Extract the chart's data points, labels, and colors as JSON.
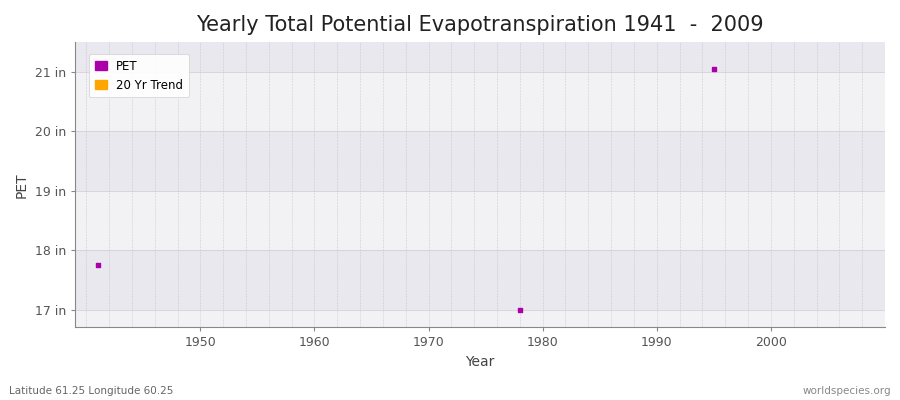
{
  "title": "Yearly Total Potential Evapotranspiration 1941  -  2009",
  "xlabel": "Year",
  "ylabel": "PET",
  "ylim": [
    16.7,
    21.5
  ],
  "xlim": [
    1939,
    2010
  ],
  "ytick_labels": [
    "17 in",
    "18 in",
    "19 in",
    "20 in",
    "21 in"
  ],
  "ytick_values": [
    17,
    18,
    19,
    20,
    21
  ],
  "xtick_values": [
    1950,
    1960,
    1970,
    1980,
    1990,
    2000
  ],
  "data_points": [
    {
      "year": 1941,
      "value": 17.75
    },
    {
      "year": 1978,
      "value": 17.0
    },
    {
      "year": 1995,
      "value": 21.05
    }
  ],
  "pet_color": "#AA00AA",
  "trend_color": "#FFA500",
  "bg_white": "#FFFFFF",
  "band_light": "#F2F2F5",
  "band_dark": "#E8E8EE",
  "grid_color_h": "#CCCCCC",
  "grid_color_v": "#BBBBCC",
  "legend_labels": [
    "PET",
    "20 Yr Trend"
  ],
  "footer_left": "Latitude 61.25 Longitude 60.25",
  "footer_right": "worldspecies.org",
  "title_fontsize": 15,
  "axis_label_fontsize": 10,
  "tick_fontsize": 9
}
